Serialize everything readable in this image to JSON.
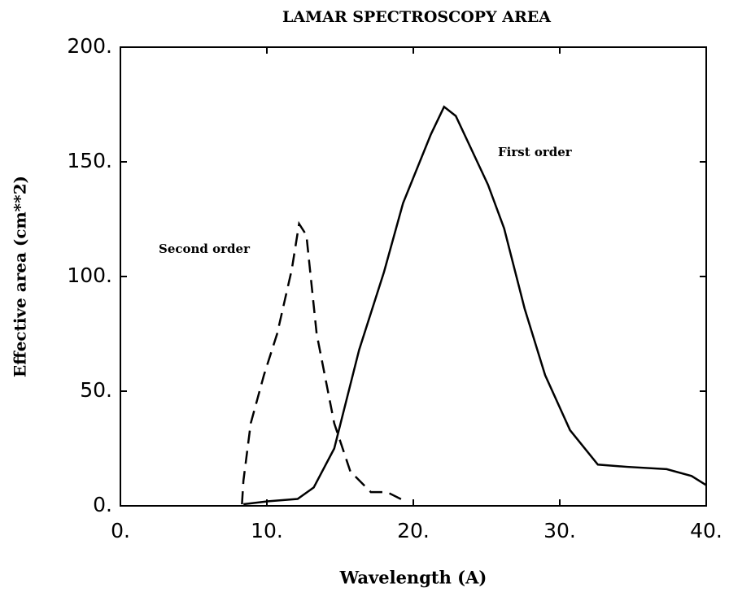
{
  "chart_data": {
    "type": "line",
    "title": "LAMAR SPECTROSCOPY AREA",
    "x_label": "Wavelength (A)",
    "y_label": "Effective area (cm**2)",
    "xlim": [
      0,
      40
    ],
    "ylim": [
      0,
      200
    ],
    "xticks": [
      {
        "value": 0,
        "label": "0."
      },
      {
        "value": 10,
        "label": "10."
      },
      {
        "value": 20,
        "label": "20."
      },
      {
        "value": 30,
        "label": "30."
      },
      {
        "value": 40,
        "label": "40."
      }
    ],
    "yticks": [
      {
        "value": 0,
        "label": "0."
      },
      {
        "value": 50,
        "label": "50."
      },
      {
        "value": 100,
        "label": "100."
      },
      {
        "value": 150,
        "label": "150."
      },
      {
        "value": 200,
        "label": "200."
      }
    ],
    "series": [
      {
        "name": "First order",
        "color": "#000000",
        "style": "solid",
        "x": [
          8.4,
          10.1,
          12.1,
          13.2,
          14.6,
          16.3,
          18.0,
          19.3,
          21.2,
          22.1,
          22.9,
          24.0,
          25.1,
          26.2,
          27.6,
          29.0,
          30.7,
          32.6,
          34.6,
          37.3,
          39.0,
          40
        ],
        "values": [
          0.7,
          2,
          3,
          8,
          25,
          68,
          102,
          132,
          162,
          174,
          170,
          155,
          140,
          121,
          86,
          57,
          33,
          18,
          17,
          16,
          13,
          9
        ]
      },
      {
        "name": "Second order",
        "color": "#000000",
        "style": "dashed",
        "x": [
          8.3,
          8.4,
          8.9,
          9.8,
          10.7,
          11.7,
          12.2,
          12.7,
          13.4,
          14.6,
          15.7,
          17.1,
          18.2,
          19.3
        ],
        "values": [
          0.7,
          11,
          36,
          57,
          75,
          103,
          123,
          118,
          75,
          36,
          15,
          6,
          6,
          2.5
        ]
      }
    ]
  }
}
